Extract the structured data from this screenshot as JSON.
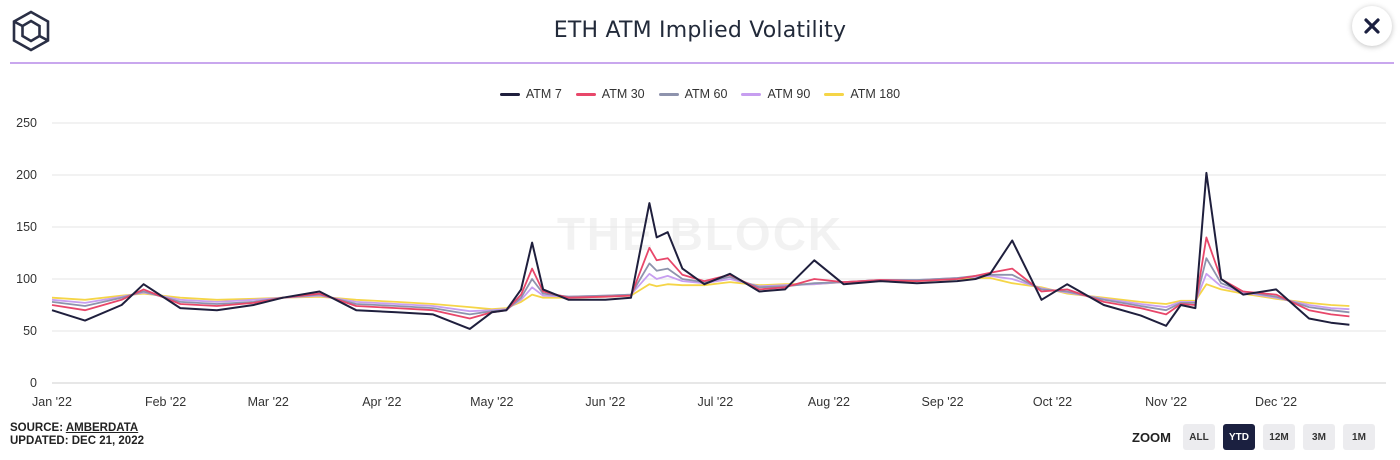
{
  "header": {
    "title": "ETH ATM Implied Volatility",
    "logo_icon": "cube-logo-icon",
    "close_icon": "close-icon"
  },
  "watermark": "THE BLOCK",
  "footer": {
    "source_prefix": "SOURCE: ",
    "source_name": "AMBERDATA",
    "updated": "UPDATED: DEC 21, 2022"
  },
  "zoom": {
    "label": "ZOOM",
    "options": [
      "ALL",
      "YTD",
      "12M",
      "3M",
      "1M"
    ],
    "active": "YTD"
  },
  "colors": {
    "ATM 7": "#1f1f3d",
    "ATM 30": "#e8476a",
    "ATM 60": "#8e93ad",
    "ATM 90": "#c79ef0",
    "ATM 180": "#f5d547"
  },
  "chart_data": {
    "type": "line",
    "title": "",
    "xlabel": "",
    "ylabel": "",
    "ylim": [
      0,
      250
    ],
    "yticks": [
      0,
      50,
      100,
      150,
      200,
      250
    ],
    "xlim": [
      "2022-01-01",
      "2022-12-21"
    ],
    "xticks": [
      "Jan '22",
      "Feb '22",
      "Mar '22",
      "Apr '22",
      "May '22",
      "Jun '22",
      "Jul '22",
      "Aug '22",
      "Sep '22",
      "Oct '22",
      "Nov '22",
      "Dec '22"
    ],
    "grid": true,
    "legend_position": "top-center",
    "x": [
      "2022-01-01",
      "2022-01-10",
      "2022-01-20",
      "2022-01-26",
      "2022-02-05",
      "2022-02-15",
      "2022-02-25",
      "2022-03-05",
      "2022-03-15",
      "2022-03-25",
      "2022-04-05",
      "2022-04-15",
      "2022-04-25",
      "2022-05-01",
      "2022-05-05",
      "2022-05-09",
      "2022-05-12",
      "2022-05-15",
      "2022-05-22",
      "2022-06-01",
      "2022-06-08",
      "2022-06-13",
      "2022-06-15",
      "2022-06-18",
      "2022-06-22",
      "2022-06-28",
      "2022-07-05",
      "2022-07-13",
      "2022-07-20",
      "2022-07-28",
      "2022-08-05",
      "2022-08-15",
      "2022-08-25",
      "2022-09-05",
      "2022-09-10",
      "2022-09-14",
      "2022-09-20",
      "2022-09-28",
      "2022-10-05",
      "2022-10-15",
      "2022-10-25",
      "2022-11-01",
      "2022-11-05",
      "2022-11-09",
      "2022-11-12",
      "2022-11-16",
      "2022-11-22",
      "2022-12-01",
      "2022-12-10",
      "2022-12-16",
      "2022-12-21"
    ],
    "series": [
      {
        "name": "ATM 7",
        "values": [
          70,
          60,
          75,
          95,
          72,
          70,
          75,
          82,
          88,
          70,
          68,
          66,
          52,
          68,
          70,
          90,
          135,
          90,
          80,
          80,
          82,
          173,
          140,
          145,
          110,
          95,
          105,
          88,
          90,
          118,
          95,
          98,
          96,
          98,
          100,
          105,
          137,
          80,
          95,
          75,
          65,
          55,
          75,
          72,
          202,
          100,
          85,
          90,
          62,
          58,
          56
        ]
      },
      {
        "name": "ATM 30",
        "values": [
          75,
          70,
          80,
          90,
          76,
          74,
          77,
          82,
          86,
          74,
          72,
          70,
          62,
          68,
          70,
          85,
          110,
          88,
          82,
          83,
          84,
          130,
          118,
          120,
          104,
          98,
          104,
          90,
          92,
          100,
          97,
          99,
          98,
          100,
          103,
          106,
          110,
          88,
          90,
          78,
          72,
          66,
          76,
          75,
          140,
          100,
          88,
          85,
          70,
          66,
          64
        ]
      },
      {
        "name": "ATM 60",
        "values": [
          78,
          74,
          82,
          88,
          78,
          76,
          78,
          82,
          85,
          76,
          74,
          72,
          66,
          69,
          70,
          82,
          100,
          86,
          83,
          84,
          85,
          115,
          108,
          110,
          100,
          97,
          102,
          92,
          93,
          96,
          97,
          99,
          99,
          101,
          103,
          104,
          104,
          90,
          88,
          80,
          74,
          70,
          77,
          77,
          120,
          96,
          88,
          83,
          73,
          70,
          68
        ]
      },
      {
        "name": "ATM 90",
        "values": [
          80,
          77,
          83,
          87,
          80,
          78,
          80,
          82,
          84,
          78,
          76,
          74,
          69,
          70,
          71,
          80,
          92,
          84,
          83,
          84,
          85,
          105,
          100,
          103,
          98,
          96,
          100,
          93,
          94,
          95,
          97,
          99,
          99,
          101,
          102,
          103,
          100,
          91,
          87,
          81,
          76,
          73,
          78,
          78,
          105,
          93,
          87,
          82,
          75,
          72,
          71
        ]
      },
      {
        "name": "ATM 180",
        "values": [
          82,
          80,
          84,
          86,
          82,
          80,
          81,
          82,
          83,
          80,
          78,
          76,
          73,
          71,
          72,
          78,
          85,
          82,
          82,
          83,
          84,
          95,
          93,
          95,
          94,
          94,
          97,
          94,
          95,
          95,
          97,
          98,
          98,
          100,
          101,
          101,
          96,
          92,
          86,
          82,
          78,
          76,
          79,
          79,
          95,
          90,
          86,
          81,
          77,
          75,
          74
        ]
      }
    ]
  }
}
